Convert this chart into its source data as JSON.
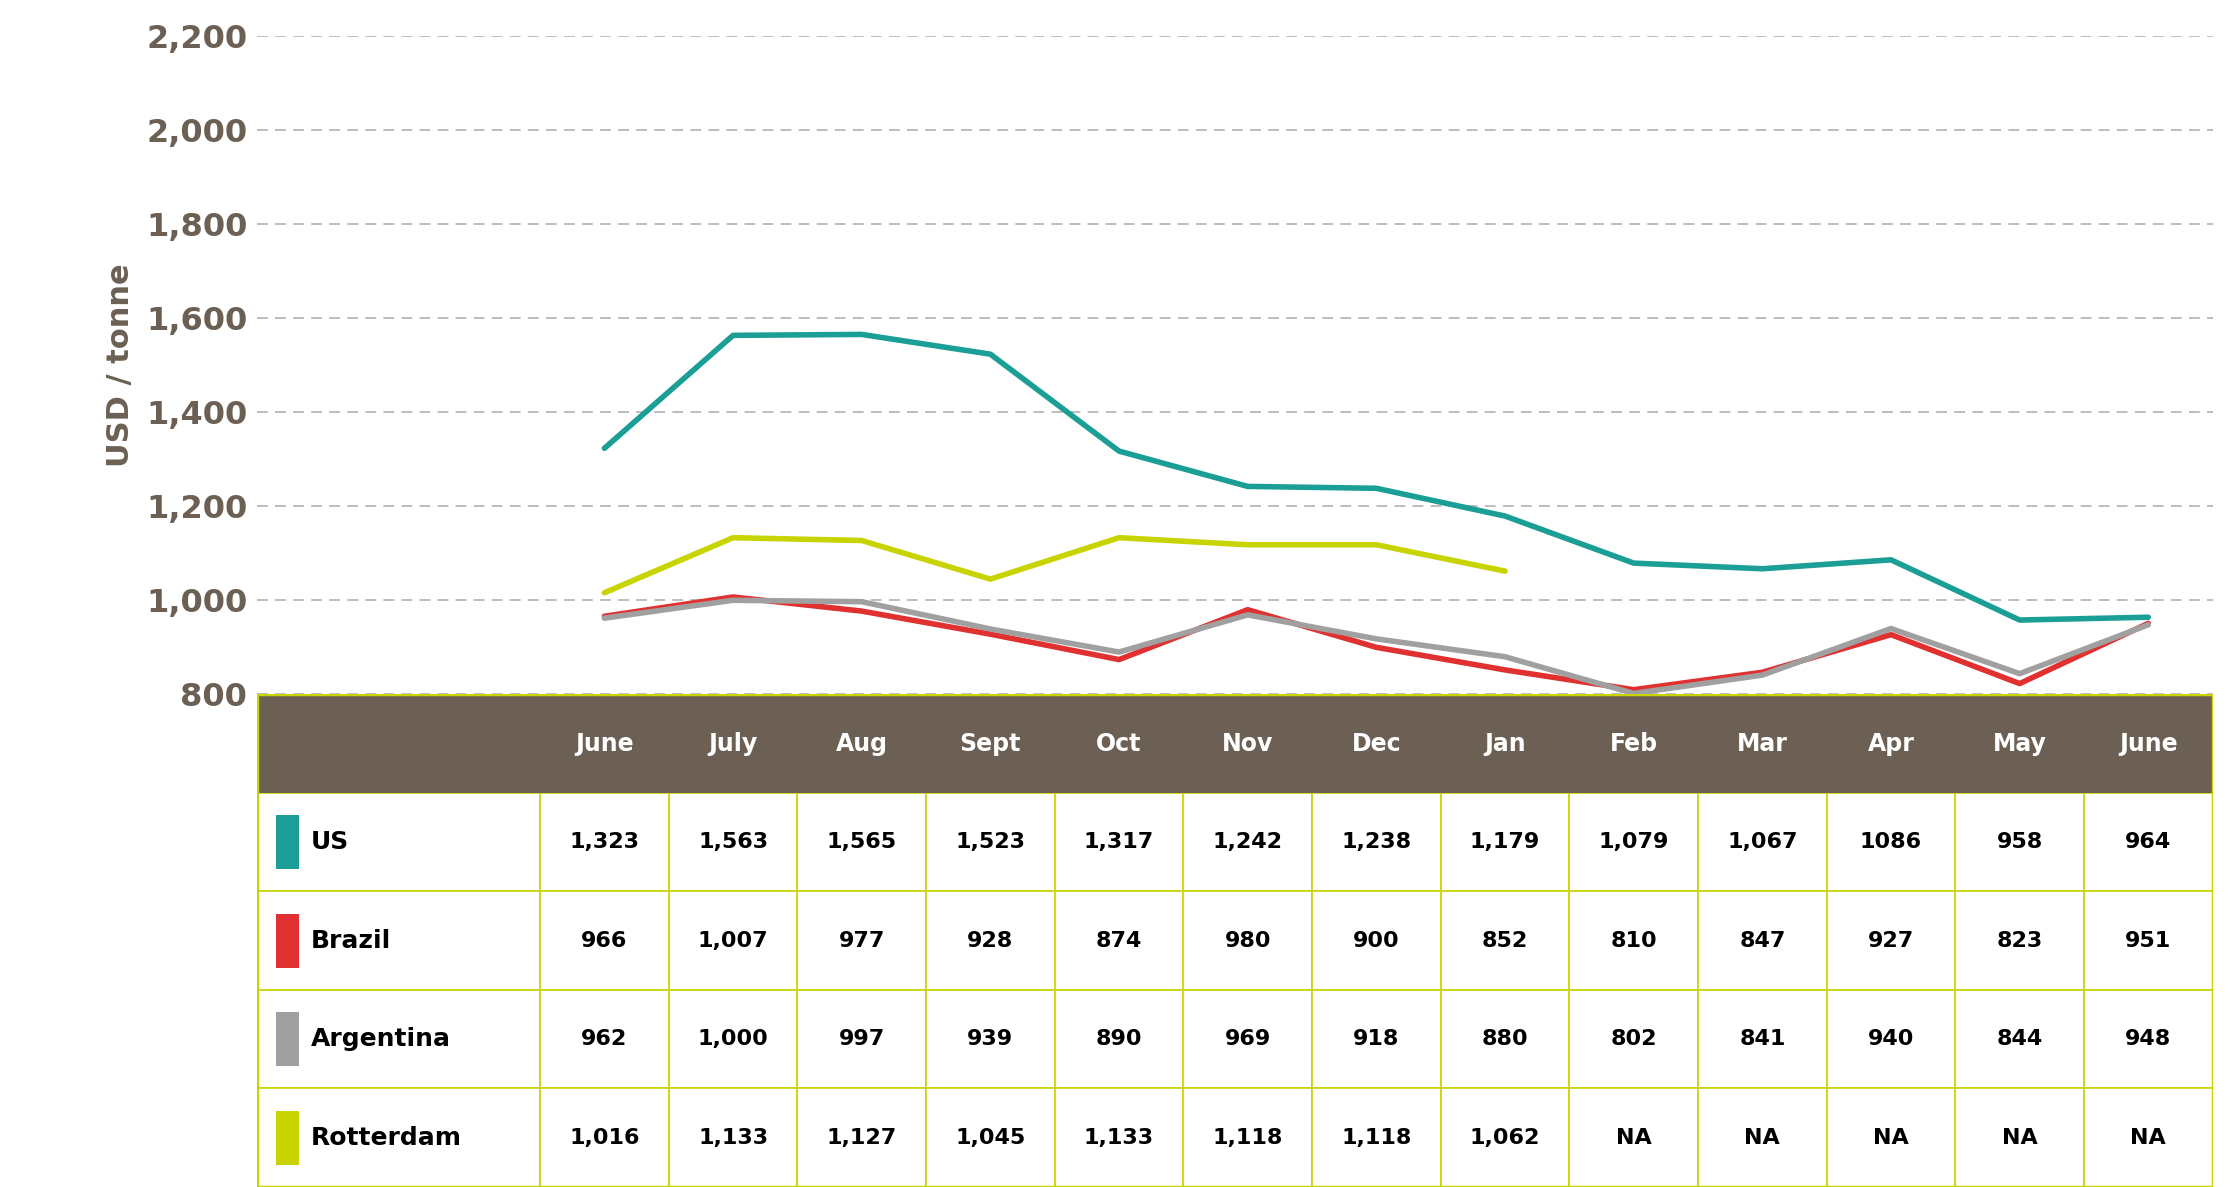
{
  "months": [
    "June",
    "July",
    "Aug",
    "Sept",
    "Oct",
    "Nov",
    "Dec",
    "Jan",
    "Feb",
    "Mar",
    "Apr",
    "May",
    "June"
  ],
  "series": {
    "US": {
      "values": [
        1323,
        1563,
        1565,
        1523,
        1317,
        1242,
        1238,
        1179,
        1079,
        1067,
        1086,
        958,
        964
      ],
      "color": "#1a9e96",
      "linewidth": 4.0
    },
    "Brazil": {
      "values": [
        966,
        1007,
        977,
        928,
        874,
        980,
        900,
        852,
        810,
        847,
        927,
        823,
        951
      ],
      "color": "#e03030",
      "linewidth": 4.0
    },
    "Argentina": {
      "values": [
        962,
        1000,
        997,
        939,
        890,
        969,
        918,
        880,
        802,
        841,
        940,
        844,
        948
      ],
      "color": "#a0a0a0",
      "linewidth": 4.0
    },
    "Rotterdam": {
      "values": [
        1016,
        1133,
        1127,
        1045,
        1133,
        1118,
        1118,
        1062,
        null,
        null,
        null,
        null,
        null
      ],
      "color": "#c8d400",
      "linewidth": 4.0
    }
  },
  "ylim": [
    800,
    2200
  ],
  "yticks": [
    800,
    1000,
    1200,
    1400,
    1600,
    1800,
    2000,
    2200
  ],
  "ylabel": "USD / tonne",
  "grid_color": "#b8b8b8",
  "background_color": "#ffffff",
  "table_header_color": "#6b6053",
  "table_header_text_color": "#ffffff",
  "table_border_color": "#c8d400",
  "axis_label_color": "#6b6053",
  "tick_label_color": "#6b6053",
  "table_values": {
    "US": [
      "1,323",
      "1,563",
      "1,565",
      "1,523",
      "1,317",
      "1,242",
      "1,238",
      "1,179",
      "1,079",
      "1,067",
      "1086",
      "958",
      "964"
    ],
    "Brazil": [
      "966",
      "1,007",
      "977",
      "928",
      "874",
      "980",
      "900",
      "852",
      "810",
      "847",
      "927",
      "823",
      "951"
    ],
    "Argentina": [
      "962",
      "1,000",
      "997",
      "939",
      "890",
      "969",
      "918",
      "880",
      "802",
      "841",
      "940",
      "844",
      "948"
    ],
    "Rotterdam": [
      "1,016",
      "1,133",
      "1,127",
      "1,045",
      "1,133",
      "1,118",
      "1,118",
      "1,062",
      "NA",
      "NA",
      "NA",
      "NA",
      "NA"
    ]
  },
  "series_order": [
    "US",
    "Brazil",
    "Argentina",
    "Rotterdam"
  ]
}
